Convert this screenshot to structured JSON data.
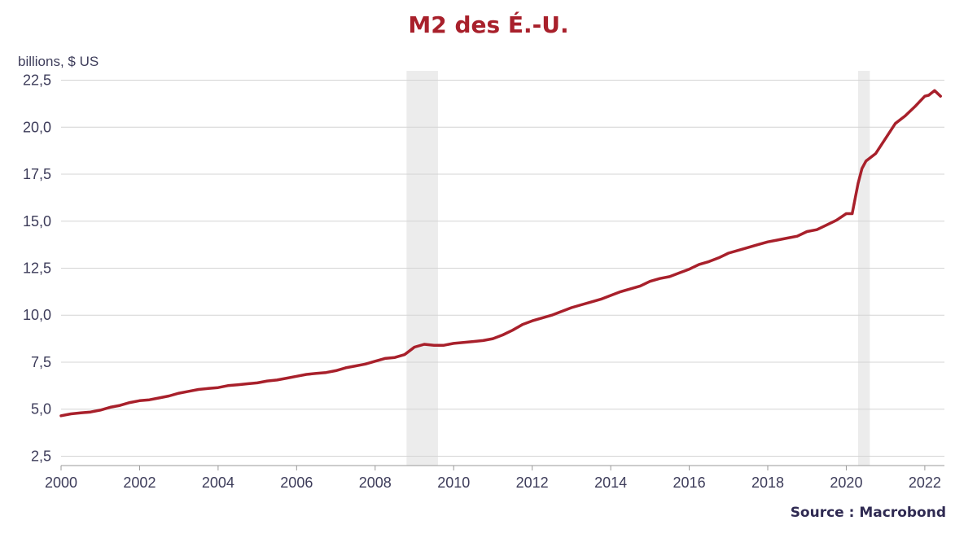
{
  "chart_data": {
    "type": "line",
    "title": "M2 des É.-U.",
    "ylabel": "billions, $ US",
    "source": "Source : Macrobond",
    "xlim": [
      2000,
      2022.5
    ],
    "ylim": [
      2.0,
      23.0
    ],
    "xticks": [
      "2000",
      "2002",
      "2004",
      "2006",
      "2008",
      "2010",
      "2012",
      "2014",
      "2016",
      "2018",
      "2020",
      "2022"
    ],
    "yticks": [
      "2,5",
      "5,0",
      "7,5",
      "10,0",
      "12,5",
      "15,0",
      "17,5",
      "20,0",
      "22,5"
    ],
    "grid": "horizontal",
    "colors": {
      "line": "#a8202b",
      "shade": "#ececec",
      "grid": "#d4d4d4",
      "text": "#3d3c5a"
    },
    "recessions": [
      [
        2008.8,
        2009.6
      ],
      [
        2020.3,
        2020.6
      ]
    ],
    "series": [
      {
        "x": [
          2000,
          2000.25,
          2000.5,
          2000.75,
          2001,
          2001.25,
          2001.5,
          2001.75,
          2002,
          2002.25,
          2002.5,
          2002.75,
          2003,
          2003.25,
          2003.5,
          2003.75,
          2004,
          2004.25,
          2004.5,
          2004.75,
          2005,
          2005.25,
          2005.5,
          2005.75,
          2006,
          2006.25,
          2006.5,
          2006.75,
          2007,
          2007.25,
          2007.5,
          2007.75,
          2008,
          2008.25,
          2008.5,
          2008.75,
          2009,
          2009.25,
          2009.5,
          2009.75,
          2010,
          2010.25,
          2010.5,
          2010.75,
          2011,
          2011.25,
          2011.5,
          2011.75,
          2012,
          2012.25,
          2012.5,
          2012.75,
          2013,
          2013.25,
          2013.5,
          2013.75,
          2014,
          2014.25,
          2014.5,
          2014.75,
          2015,
          2015.25,
          2015.5,
          2015.75,
          2016,
          2016.25,
          2016.5,
          2016.75,
          2017,
          2017.25,
          2017.5,
          2017.75,
          2018,
          2018.25,
          2018.5,
          2018.75,
          2019,
          2019.25,
          2019.5,
          2019.75,
          2020,
          2020.15,
          2020.3,
          2020.4,
          2020.5,
          2020.75,
          2021,
          2021.25,
          2021.5,
          2021.75,
          2022,
          2022.1,
          2022.25,
          2022.4
        ],
        "values": [
          4.65,
          4.75,
          4.8,
          4.85,
          4.95,
          5.1,
          5.2,
          5.35,
          5.45,
          5.5,
          5.6,
          5.7,
          5.85,
          5.95,
          6.05,
          6.1,
          6.15,
          6.25,
          6.3,
          6.35,
          6.4,
          6.5,
          6.55,
          6.65,
          6.75,
          6.85,
          6.9,
          6.95,
          7.05,
          7.2,
          7.3,
          7.4,
          7.55,
          7.7,
          7.75,
          7.9,
          8.3,
          8.45,
          8.4,
          8.4,
          8.5,
          8.55,
          8.6,
          8.65,
          8.75,
          8.95,
          9.2,
          9.5,
          9.7,
          9.85,
          10.0,
          10.2,
          10.4,
          10.55,
          10.7,
          10.85,
          11.05,
          11.25,
          11.4,
          11.55,
          11.8,
          11.95,
          12.05,
          12.25,
          12.45,
          12.7,
          12.85,
          13.05,
          13.3,
          13.45,
          13.6,
          13.75,
          13.9,
          14.0,
          14.1,
          14.2,
          14.45,
          14.55,
          14.8,
          15.05,
          15.4,
          15.4,
          17.0,
          17.8,
          18.2,
          18.6,
          19.4,
          20.2,
          20.6,
          21.1,
          21.65,
          21.7,
          21.95,
          21.65
        ]
      }
    ]
  }
}
